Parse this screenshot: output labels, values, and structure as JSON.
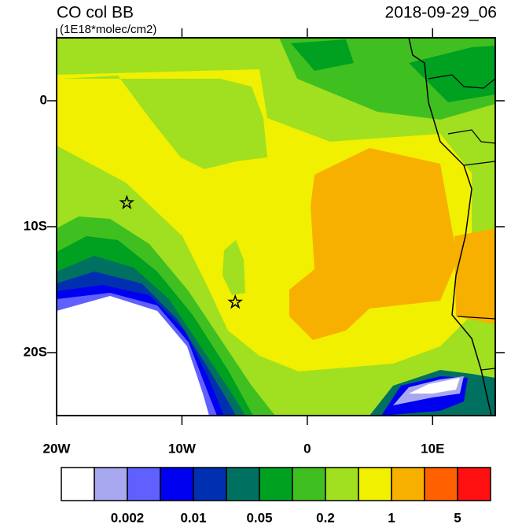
{
  "map": {
    "title": "CO col BB",
    "units": "(1E18*molec/cm2)",
    "date": "2018-09-29_06",
    "lonlim": [
      -20,
      15
    ],
    "latlim": [
      -25,
      5
    ],
    "lon_ticks": [
      {
        "value": -20,
        "label": "20W"
      },
      {
        "value": -10,
        "label": "10W"
      },
      0,
      {
        "value": 10,
        "label": "10E"
      }
    ],
    "lat_ticks": [
      0,
      {
        "value": -10,
        "label": "10S"
      },
      {
        "value": -20,
        "label": "20S"
      }
    ],
    "stars": [
      {
        "lon": -14.4,
        "lat": -8.1
      },
      {
        "lon": -5.75,
        "lat": -16
      }
    ],
    "colorbar": {
      "colors": [
        "#ffffff",
        "#a8a8f0",
        "#6060ff",
        "#0000f0",
        "#0030b0",
        "#007060",
        "#00a020",
        "#40c020",
        "#a0e020",
        "#f0f000",
        "#f8b000",
        "#ff6000",
        "#ff1010"
      ],
      "labels": [
        0.002,
        0.01,
        0.05,
        0.2,
        1,
        5
      ]
    }
  }
}
